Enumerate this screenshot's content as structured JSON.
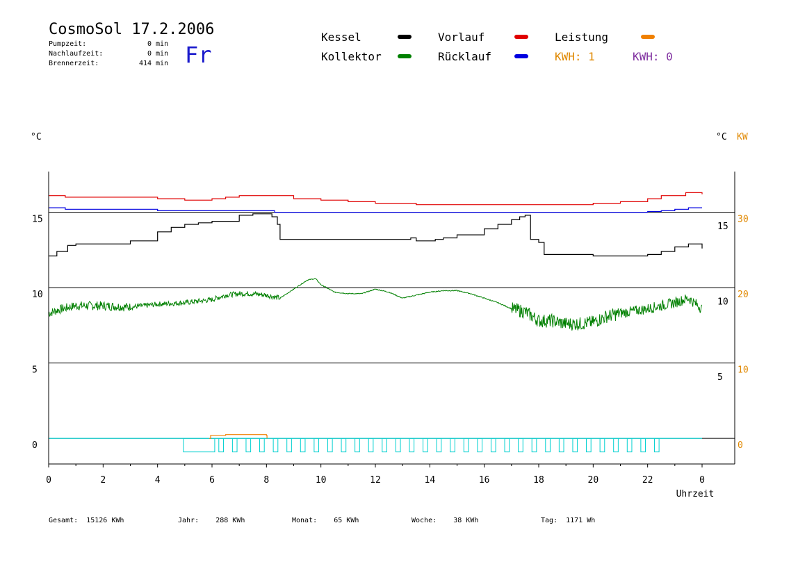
{
  "header": {
    "title": "CosmoSol 17.2.2006",
    "day": "Fr",
    "stats": [
      {
        "label": "Pumpzeit:",
        "value": "0",
        "unit": "min"
      },
      {
        "label": "Nachlaufzeit:",
        "value": "0",
        "unit": "min"
      },
      {
        "label": "Brennerzeit:",
        "value": "414",
        "unit": "min"
      }
    ]
  },
  "legend": {
    "items": [
      {
        "label": "Kessel",
        "color": "#000000"
      },
      {
        "label": "Vorlauf",
        "color": "#e00000"
      },
      {
        "label": "Leistung",
        "color": "#f08000"
      },
      {
        "label": "Kollektor",
        "color": "#008000"
      },
      {
        "label": "Rücklauf",
        "color": "#0000e0"
      }
    ],
    "kwh": [
      {
        "text": "KWH: 1",
        "color": "#e08800"
      },
      {
        "text": "KWH: 0",
        "color": "#8030a0"
      }
    ]
  },
  "units": {
    "left": "°C",
    "right_c": "°C",
    "right_kw": "KW"
  },
  "footer": [
    {
      "label": "Gesamt:",
      "value": "15126 KWh"
    },
    {
      "label": "Jahr:",
      "value": "288 KWh"
    },
    {
      "label": "Monat:",
      "value": "65 KWh"
    },
    {
      "label": "Woche:",
      "value": "38 KWh"
    },
    {
      "label": "Tag:",
      "value": "1171 Wh"
    }
  ],
  "chart_data": {
    "type": "line",
    "xlabel": "Uhrzeit",
    "x_ticks": [
      "0",
      "2",
      "4",
      "6",
      "8",
      "10",
      "12",
      "14",
      "16",
      "18",
      "20",
      "22",
      "0"
    ],
    "xlim": [
      0,
      24
    ],
    "y_left_ticks": [
      0,
      5,
      10,
      15
    ],
    "y_right_c_ticks": [
      5,
      10,
      15
    ],
    "y_right_kw_ticks": [
      0,
      10,
      20,
      30
    ],
    "ylim": [
      -1.7,
      17.7
    ],
    "gridlines_y": [
      0,
      5,
      10,
      15
    ],
    "colors": {
      "Kessel": "#000000",
      "Kollektor": "#008000",
      "Vorlauf": "#e00000",
      "Rücklauf": "#0000e0",
      "Leistung": "#f08000",
      "Pumpe": "#00d0d0"
    },
    "series": [
      {
        "name": "Vorlauf",
        "x": [
          0,
          0.6,
          0.61,
          2,
          3,
          4,
          4.5,
          5,
          6,
          6.5,
          7,
          8,
          9,
          10,
          11,
          12,
          13,
          13.5,
          14,
          15,
          16,
          17,
          18,
          19,
          19.5,
          20,
          21,
          22,
          22.5,
          23.4,
          23.6,
          24
        ],
        "values": [
          16.1,
          16.1,
          16.0,
          16.0,
          16.0,
          15.9,
          15.9,
          15.8,
          15.9,
          16.0,
          16.1,
          16.1,
          15.9,
          15.8,
          15.7,
          15.6,
          15.6,
          15.5,
          15.5,
          15.5,
          15.5,
          15.5,
          15.5,
          15.5,
          15.5,
          15.6,
          15.7,
          15.9,
          16.1,
          16.3,
          16.3,
          16.2
        ]
      },
      {
        "name": "Rücklauf",
        "x": [
          0,
          0.6,
          0.61,
          2,
          4,
          6,
          7,
          8,
          8.3,
          10,
          12,
          14,
          16,
          18,
          19,
          20,
          21,
          22,
          22.5,
          23,
          23.5,
          24
        ],
        "values": [
          15.3,
          15.3,
          15.2,
          15.2,
          15.1,
          15.1,
          15.1,
          15.1,
          15.0,
          15.0,
          15.0,
          15.0,
          15.0,
          15.0,
          15.0,
          15.0,
          15.0,
          15.05,
          15.1,
          15.2,
          15.3,
          15.3
        ]
      },
      {
        "name": "Kessel",
        "x": [
          0,
          0.3,
          0.7,
          1,
          2,
          2.8,
          3,
          4,
          4.5,
          5,
          5.5,
          6,
          7,
          7.5,
          8,
          8.2,
          8.4,
          8.5,
          9,
          10,
          11,
          12,
          13,
          13.3,
          13.5,
          14,
          14.2,
          14.5,
          15,
          16,
          16.5,
          17,
          17.3,
          17.5,
          17.7,
          18,
          18.2,
          19,
          20,
          21,
          22,
          22.5,
          23,
          23.5,
          24
        ],
        "values": [
          12.1,
          12.4,
          12.8,
          12.9,
          12.9,
          12.9,
          13.1,
          13.7,
          14.0,
          14.2,
          14.3,
          14.4,
          14.8,
          14.9,
          14.9,
          14.7,
          14.2,
          13.2,
          13.2,
          13.2,
          13.2,
          13.2,
          13.2,
          13.3,
          13.1,
          13.1,
          13.2,
          13.3,
          13.5,
          13.9,
          14.2,
          14.5,
          14.7,
          14.8,
          13.2,
          13.0,
          12.2,
          12.2,
          12.1,
          12.1,
          12.2,
          12.4,
          12.7,
          12.9,
          12.6
        ]
      },
      {
        "name": "Kollektor",
        "x": [
          0,
          0.5,
          1,
          2,
          3,
          4,
          5,
          5.5,
          6,
          6.5,
          7,
          7.5,
          8,
          8.5,
          9,
          9.5,
          9.8,
          10,
          10.5,
          11,
          11.5,
          12,
          12.5,
          13,
          13.5,
          14,
          14.5,
          15,
          15.5,
          16,
          16.5,
          17,
          17.5,
          18,
          18.5,
          19,
          19.5,
          20,
          20.5,
          21,
          22,
          23,
          23.5,
          24
        ],
        "values": [
          8.3,
          8.6,
          8.8,
          8.8,
          8.7,
          8.9,
          9.0,
          9.1,
          9.2,
          9.5,
          9.6,
          9.6,
          9.5,
          9.3,
          9.9,
          10.5,
          10.6,
          10.2,
          9.7,
          9.6,
          9.6,
          9.9,
          9.7,
          9.3,
          9.5,
          9.7,
          9.8,
          9.8,
          9.6,
          9.3,
          9.0,
          8.6,
          8.4,
          7.8,
          7.8,
          7.6,
          7.6,
          7.7,
          8.1,
          8.3,
          8.6,
          9.0,
          9.3,
          8.6
        ]
      },
      {
        "name": "Leistung",
        "x": [
          5.9,
          5.95,
          6.5,
          7.5,
          8.0,
          8.02
        ],
        "values": [
          0,
          0.2,
          0.25,
          0.25,
          0.2,
          0
        ]
      }
    ]
  }
}
